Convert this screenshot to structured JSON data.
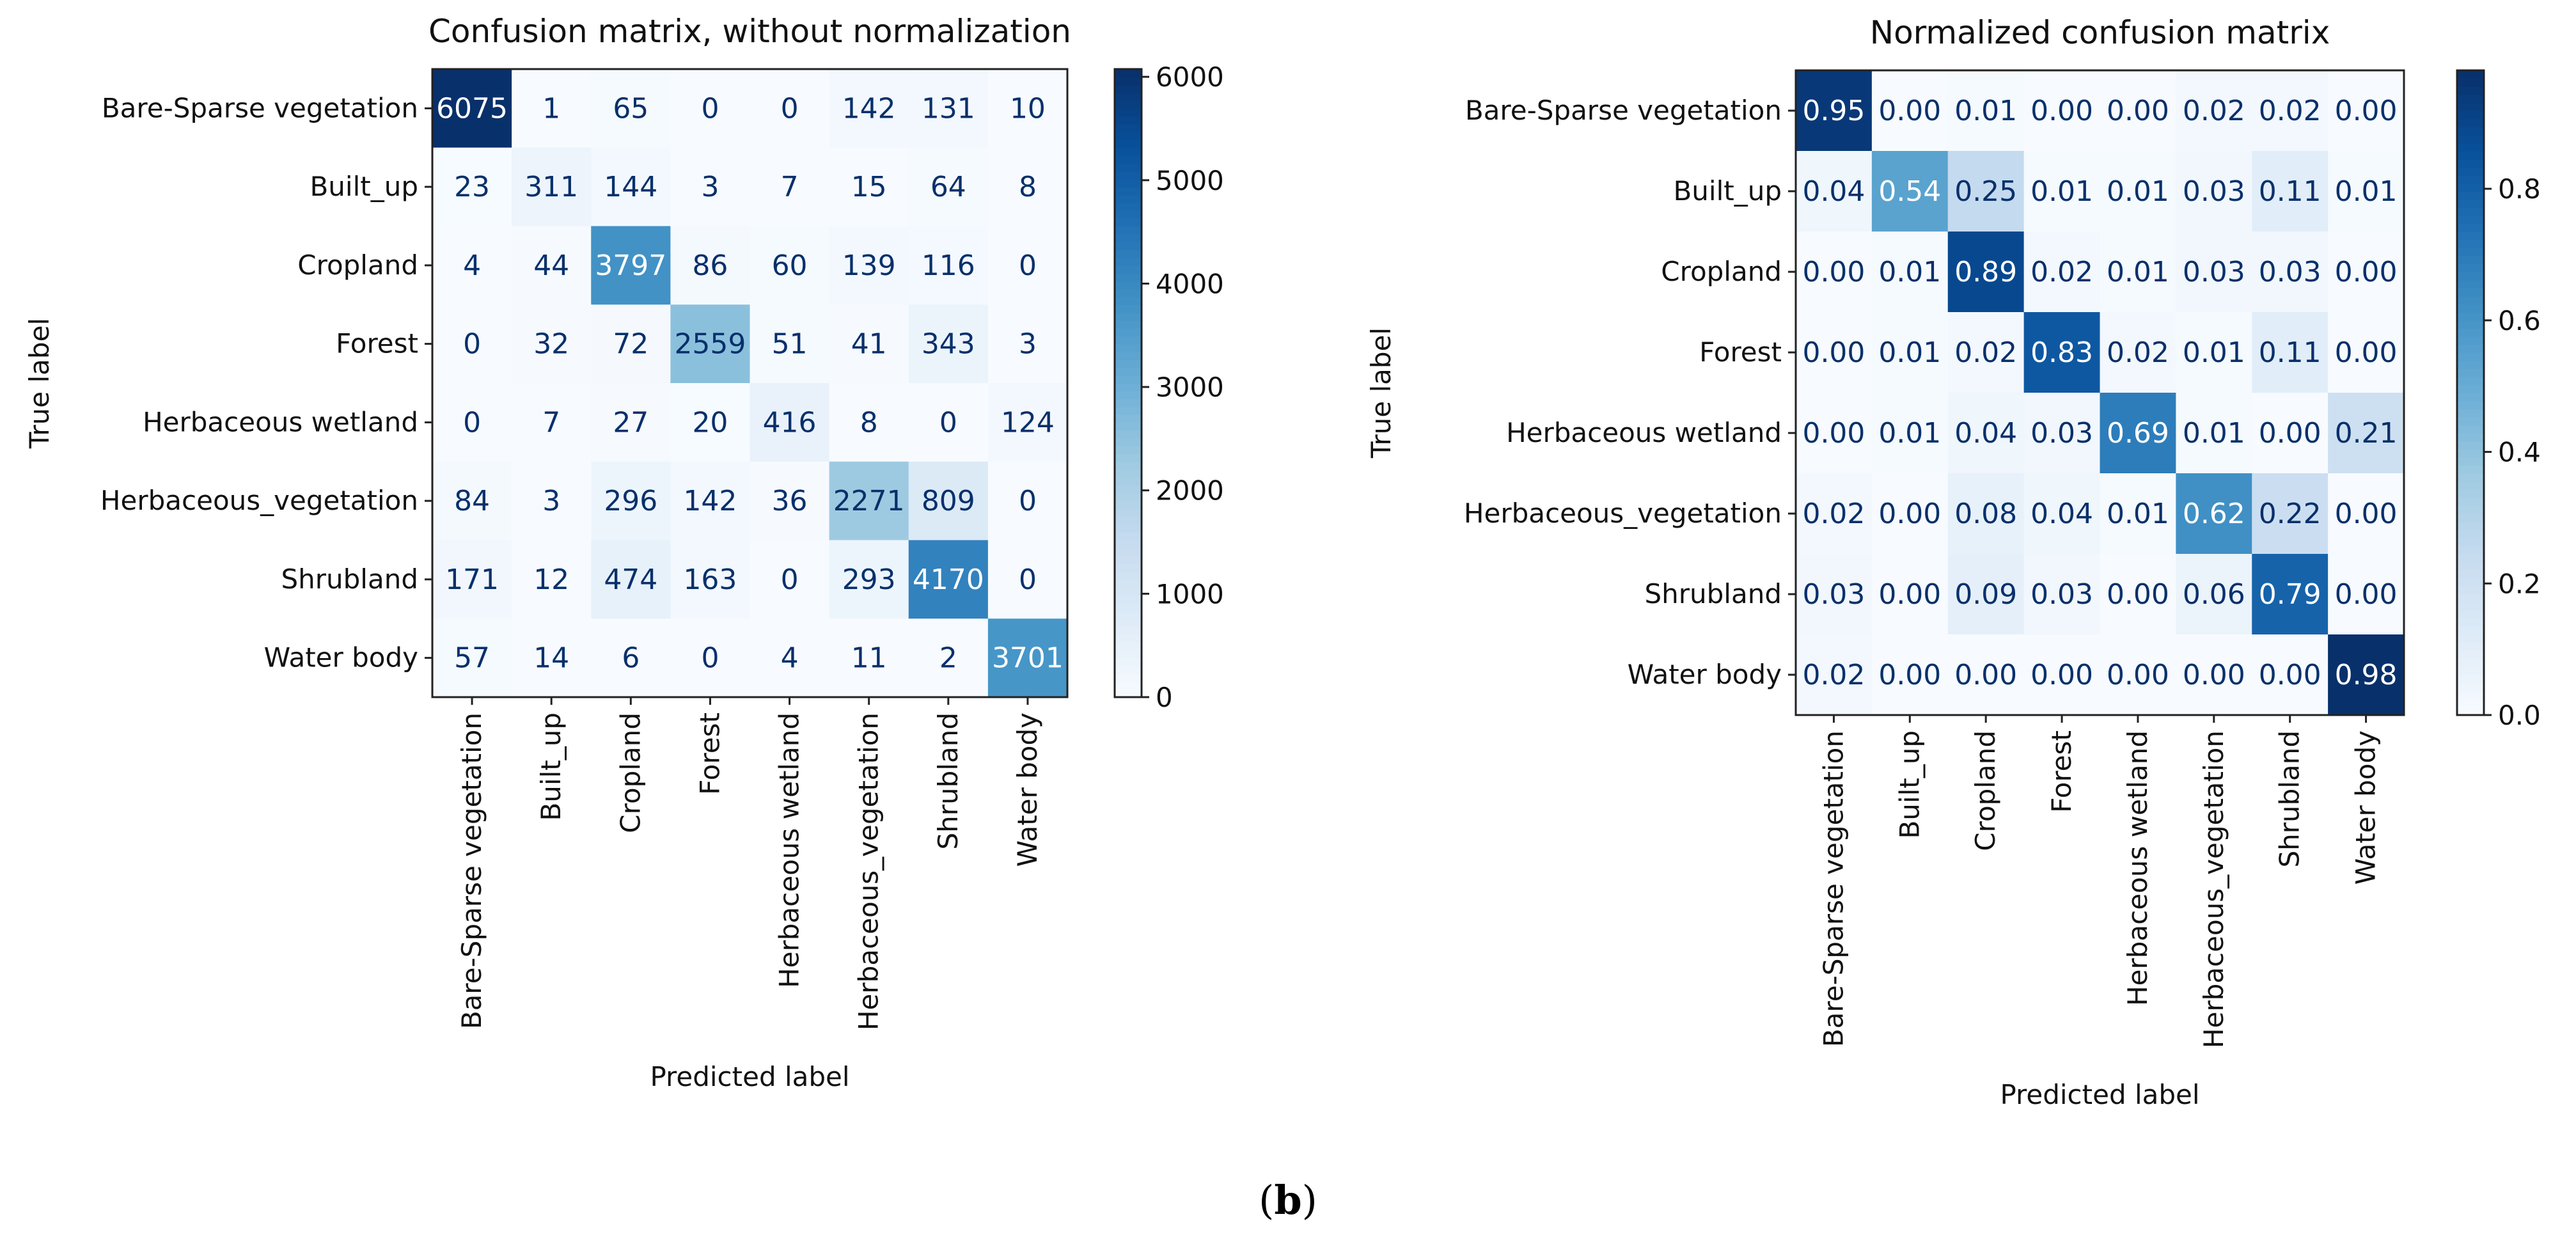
{
  "figure_caption": {
    "open": "(",
    "letter": "b",
    "close": ")"
  },
  "chart_data": [
    {
      "type": "heatmap",
      "title": "Confusion matrix, without normalization",
      "xlabel": "Predicted label",
      "ylabel": "True label",
      "colormap": "Blues",
      "categories": [
        "Bare-Sparse vegetation",
        "Built_up",
        "Cropland",
        "Forest",
        "Herbaceous wetland",
        "Herbaceous_vegetation",
        "Shrubland",
        "Water body"
      ],
      "values": [
        [
          6075,
          1,
          65,
          0,
          0,
          142,
          131,
          10
        ],
        [
          23,
          311,
          144,
          3,
          7,
          15,
          64,
          8
        ],
        [
          4,
          44,
          3797,
          86,
          60,
          139,
          116,
          0
        ],
        [
          0,
          32,
          72,
          2559,
          51,
          41,
          343,
          3
        ],
        [
          0,
          7,
          27,
          20,
          416,
          8,
          0,
          124
        ],
        [
          84,
          3,
          296,
          142,
          36,
          2271,
          809,
          0
        ],
        [
          171,
          12,
          474,
          163,
          0,
          293,
          4170,
          0
        ],
        [
          57,
          14,
          6,
          0,
          4,
          11,
          2,
          3701
        ]
      ],
      "value_format": "int",
      "colorbar": {
        "min": 0,
        "max": 6075,
        "ticks": [
          0,
          1000,
          2000,
          3000,
          4000,
          5000,
          6000
        ],
        "tick_labels": [
          "0",
          "1000",
          "2000",
          "3000",
          "4000",
          "5000",
          "6000"
        ]
      }
    },
    {
      "type": "heatmap",
      "title": "Normalized confusion matrix",
      "xlabel": "Predicted label",
      "ylabel": "True label",
      "colormap": "Blues",
      "categories": [
        "Bare-Sparse vegetation",
        "Built_up",
        "Cropland",
        "Forest",
        "Herbaceous wetland",
        "Herbaceous_vegetation",
        "Shrubland",
        "Water body"
      ],
      "values": [
        [
          0.95,
          0.0,
          0.01,
          0.0,
          0.0,
          0.02,
          0.02,
          0.0
        ],
        [
          0.04,
          0.54,
          0.25,
          0.01,
          0.01,
          0.03,
          0.11,
          0.01
        ],
        [
          0.0,
          0.01,
          0.89,
          0.02,
          0.01,
          0.03,
          0.03,
          0.0
        ],
        [
          0.0,
          0.01,
          0.02,
          0.83,
          0.02,
          0.01,
          0.11,
          0.0
        ],
        [
          0.0,
          0.01,
          0.04,
          0.03,
          0.69,
          0.01,
          0.0,
          0.21
        ],
        [
          0.02,
          0.0,
          0.08,
          0.04,
          0.01,
          0.62,
          0.22,
          0.0
        ],
        [
          0.03,
          0.0,
          0.09,
          0.03,
          0.0,
          0.06,
          0.79,
          0.0
        ],
        [
          0.02,
          0.0,
          0.0,
          0.0,
          0.0,
          0.0,
          0.0,
          0.98
        ]
      ],
      "value_format": "2dp",
      "colorbar": {
        "min": 0,
        "max": 0.98,
        "ticks": [
          0,
          0.2,
          0.4,
          0.6,
          0.8
        ],
        "tick_labels": [
          "0.0",
          "0.2",
          "0.4",
          "0.6",
          "0.8"
        ]
      }
    }
  ]
}
